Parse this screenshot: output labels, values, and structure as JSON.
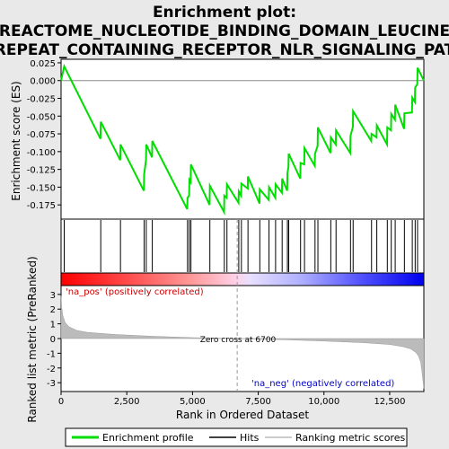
{
  "title_line1": "Enrichment plot:",
  "title_line2": "REACTOME_NUCLEOTIDE_BINDING_DOMAIN_LEUCINE",
  "title_line3": "REPEAT_CONTAINING_RECEPTOR_NLR_SIGNALING_PAT",
  "zero_cross_label": "Zero cross at 6700",
  "pos_label": "'na_pos' (positively correlated)",
  "neg_label": "'na_neg' (negatively correlated)",
  "chart_data": [
    {
      "type": "line",
      "name": "enrichment-profile",
      "ylabel": "Enrichment score (ES)",
      "xlim": [
        0,
        13800
      ],
      "ylim": [
        -0.195,
        0.03
      ],
      "yticks": [
        0.025,
        0.0,
        -0.025,
        -0.05,
        -0.075,
        -0.1,
        -0.125,
        -0.15,
        -0.175
      ],
      "ytick_labels": [
        "0.025",
        "0.000",
        "-0.025",
        "-0.050",
        "-0.075",
        "-0.100",
        "-0.125",
        "-0.150",
        "-0.175"
      ],
      "x": [
        0,
        120,
        1500,
        1510,
        2250,
        2260,
        3150,
        3160,
        3230,
        3240,
        3460,
        3470,
        4800,
        4810,
        4870,
        4880,
        4930,
        4940,
        5650,
        5660,
        6200,
        6210,
        6300,
        6310,
        6750,
        6760,
        6850,
        6860,
        7100,
        7110,
        7550,
        7560,
        7900,
        7910,
        8150,
        8160,
        8400,
        8410,
        8600,
        8610,
        8650,
        8660,
        9100,
        9110,
        9250,
        9260,
        9650,
        9660,
        9760,
        9770,
        10250,
        10260,
        10450,
        10460,
        11000,
        11010,
        11100,
        11110,
        11800,
        11810,
        12000,
        12010,
        12400,
        12410,
        12550,
        12560,
        12700,
        12710,
        13050,
        13060,
        13350,
        13360,
        13460,
        13470,
        13550,
        13560,
        13800
      ],
      "y": [
        0.0,
        0.02,
        -0.082,
        -0.058,
        -0.112,
        -0.09,
        -0.155,
        -0.132,
        -0.112,
        -0.09,
        -0.108,
        -0.085,
        -0.181,
        -0.165,
        -0.162,
        -0.14,
        -0.143,
        -0.118,
        -0.175,
        -0.148,
        -0.185,
        -0.162,
        -0.165,
        -0.146,
        -0.172,
        -0.156,
        -0.162,
        -0.145,
        -0.152,
        -0.135,
        -0.173,
        -0.153,
        -0.168,
        -0.15,
        -0.165,
        -0.146,
        -0.158,
        -0.138,
        -0.155,
        -0.13,
        -0.122,
        -0.103,
        -0.138,
        -0.116,
        -0.118,
        -0.095,
        -0.12,
        -0.103,
        -0.092,
        -0.066,
        -0.102,
        -0.08,
        -0.09,
        -0.07,
        -0.102,
        -0.078,
        -0.065,
        -0.043,
        -0.085,
        -0.075,
        -0.08,
        -0.063,
        -0.09,
        -0.066,
        -0.07,
        -0.047,
        -0.055,
        -0.034,
        -0.068,
        -0.046,
        -0.045,
        -0.024,
        -0.03,
        -0.01,
        -0.005,
        0.018,
        0.0
      ]
    },
    {
      "type": "hits",
      "name": "hits",
      "positions": [
        120,
        1510,
        2260,
        3160,
        3240,
        3470,
        4810,
        4880,
        4940,
        5660,
        6210,
        6310,
        6760,
        6860,
        7110,
        7560,
        7910,
        8160,
        8410,
        8610,
        8660,
        9110,
        9260,
        9660,
        9770,
        10260,
        10460,
        11010,
        11110,
        11810,
        12010,
        12410,
        12560,
        12710,
        13060,
        13360,
        13470,
        13560
      ]
    },
    {
      "type": "area",
      "name": "ranked-list-metric",
      "ylabel": "Ranked list metric (PreRanked)",
      "xlabel": "Rank in Ordered Dataset",
      "xlim": [
        0,
        13800
      ],
      "ylim": [
        -3.6,
        3.6
      ],
      "xticks": [
        0,
        2500,
        5000,
        7500,
        10000,
        12500
      ],
      "xtick_labels": [
        "0",
        "2,500",
        "5,000",
        "7,500",
        "10,000",
        "12,500"
      ],
      "yticks": [
        3,
        2,
        1,
        0,
        -1,
        -2,
        -3
      ],
      "ytick_labels": [
        "3",
        "2",
        "1",
        "0",
        "-1",
        "-2",
        "-3"
      ],
      "x": [
        0,
        20,
        60,
        150,
        300,
        600,
        1000,
        2000,
        3500,
        5000,
        6700,
        8500,
        10000,
        11500,
        12500,
        13000,
        13300,
        13500,
        13600,
        13680,
        13740,
        13800
      ],
      "y": [
        2.9,
        2.2,
        1.6,
        1.1,
        0.8,
        0.55,
        0.42,
        0.28,
        0.15,
        0.06,
        0.0,
        -0.08,
        -0.17,
        -0.28,
        -0.4,
        -0.55,
        -0.7,
        -0.95,
        -1.2,
        -1.6,
        -2.4,
        -3.4
      ],
      "zero_cross": 6700
    }
  ],
  "legend": {
    "items": [
      {
        "label": "Enrichment profile",
        "color": "#00dd00"
      },
      {
        "label": "Hits",
        "color": "#000000"
      },
      {
        "label": "Ranking metric scores",
        "color": "#bbbbbb"
      }
    ]
  },
  "colors": {
    "es_line": "#00dd00",
    "pos_text": "#cc0000",
    "neg_text": "#0000cc",
    "background": "#e9e9e9"
  }
}
